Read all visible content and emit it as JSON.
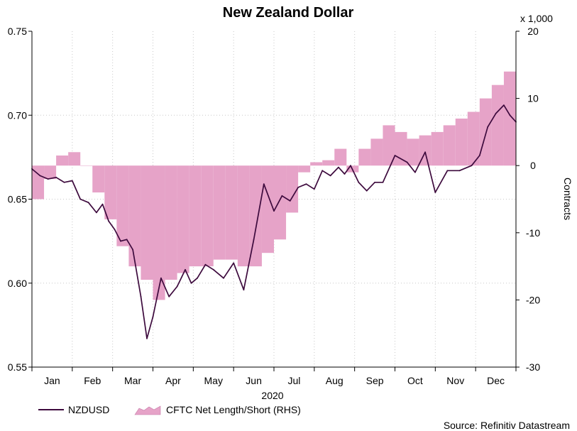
{
  "chart_data": {
    "type": "line",
    "title": "New Zealand Dollar",
    "year_label": "2020",
    "source": "Source: Refinitiv Datastream",
    "right_axis_multiplier": "x 1,000",
    "right_axis_label": "Contracts",
    "left_axis": {
      "ylim": [
        0.55,
        0.75
      ],
      "ticks": [
        "0.55",
        "0.60",
        "0.65",
        "0.70",
        "0.75"
      ]
    },
    "right_axis": {
      "ylim": [
        -30,
        20
      ],
      "ticks": [
        "-30",
        "-20",
        "-10",
        "0",
        "10",
        "20"
      ]
    },
    "months": [
      "Jan",
      "Feb",
      "Mar",
      "Apr",
      "May",
      "Jun",
      "Jul",
      "Aug",
      "Sep",
      "Oct",
      "Nov",
      "Dec"
    ],
    "grid": true,
    "legend_position": "bottom-left",
    "colors": {
      "line": "#3d0a3d",
      "area": "#e6a3c8",
      "grid": "#c8c8c8"
    },
    "series": [
      {
        "name": "NZDUSD",
        "type": "line",
        "axis": "left",
        "x": [
          0.0,
          0.2,
          0.4,
          0.6,
          0.8,
          1.0,
          1.2,
          1.4,
          1.6,
          1.75,
          1.9,
          2.05,
          2.2,
          2.35,
          2.5,
          2.7,
          2.85,
          3.0,
          3.2,
          3.4,
          3.6,
          3.8,
          3.95,
          4.1,
          4.3,
          4.5,
          4.75,
          5.0,
          5.25,
          5.5,
          5.75,
          6.0,
          6.2,
          6.4,
          6.6,
          6.8,
          7.0,
          7.2,
          7.4,
          7.6,
          7.75,
          7.9,
          8.1,
          8.3,
          8.5,
          8.7,
          9.0,
          9.3,
          9.5,
          9.75,
          10.0,
          10.3,
          10.6,
          10.9,
          11.1,
          11.3,
          11.5,
          11.7,
          11.85,
          12.0
        ],
        "values": [
          0.668,
          0.664,
          0.662,
          0.663,
          0.66,
          0.661,
          0.65,
          0.648,
          0.642,
          0.647,
          0.637,
          0.632,
          0.625,
          0.626,
          0.62,
          0.592,
          0.567,
          0.58,
          0.603,
          0.592,
          0.598,
          0.608,
          0.6,
          0.603,
          0.611,
          0.608,
          0.603,
          0.612,
          0.596,
          0.626,
          0.659,
          0.643,
          0.652,
          0.649,
          0.657,
          0.659,
          0.656,
          0.667,
          0.664,
          0.669,
          0.665,
          0.67,
          0.66,
          0.655,
          0.66,
          0.66,
          0.676,
          0.672,
          0.666,
          0.678,
          0.654,
          0.667,
          0.667,
          0.67,
          0.676,
          0.693,
          0.701,
          0.706,
          0.7,
          0.696
        ]
      },
      {
        "name": "CFTC Net Length/Short (RHS)",
        "type": "area",
        "axis": "right",
        "x": [
          0.0,
          0.3,
          0.6,
          0.9,
          1.2,
          1.5,
          1.8,
          2.1,
          2.4,
          2.7,
          3.0,
          3.3,
          3.6,
          3.9,
          4.2,
          4.5,
          4.8,
          5.1,
          5.4,
          5.7,
          6.0,
          6.3,
          6.6,
          6.9,
          7.2,
          7.5,
          7.8,
          8.1,
          8.4,
          8.7,
          9.0,
          9.3,
          9.6,
          9.9,
          10.2,
          10.5,
          10.8,
          11.1,
          11.4,
          11.7,
          12.0
        ],
        "values": [
          -5,
          -2,
          1.5,
          2,
          0,
          -4,
          -8,
          -12,
          -15,
          -17,
          -20,
          -17,
          -16,
          -15,
          -15,
          -14,
          -14,
          -15,
          -15,
          -13,
          -11,
          -7,
          -1,
          0.5,
          0.8,
          2.5,
          -1,
          2.5,
          4,
          6,
          5,
          4,
          4.5,
          5,
          6,
          7,
          8,
          10,
          12,
          14,
          12
        ]
      }
    ]
  }
}
